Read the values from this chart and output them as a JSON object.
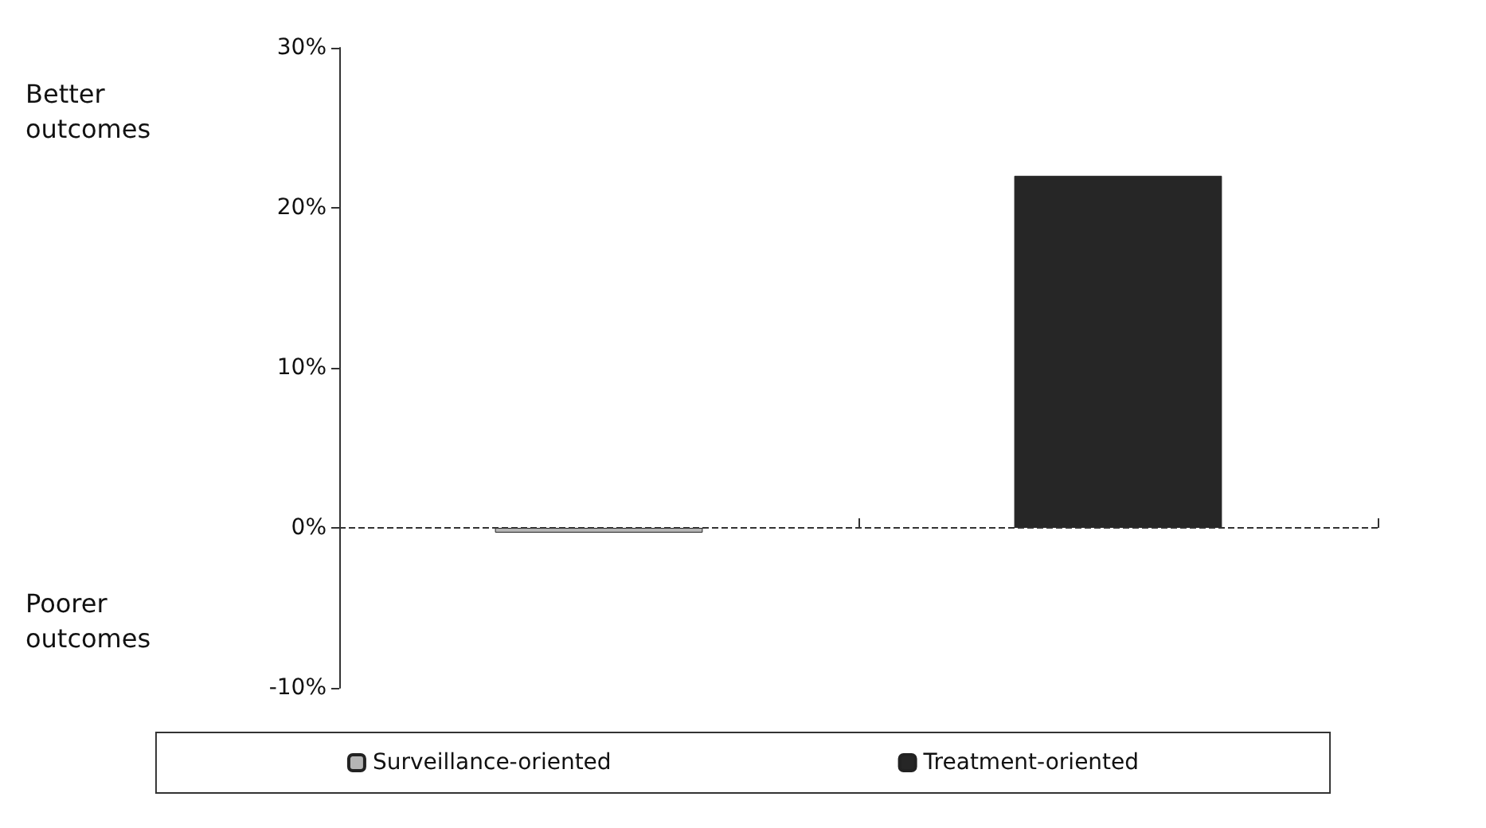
{
  "chart_data": {
    "type": "bar",
    "categories": [
      null,
      null
    ],
    "series": [
      {
        "name": "Surveillance-oriented",
        "color": "#b5b5b5",
        "values": [
          -0.3,
          null
        ]
      },
      {
        "name": "Treatment-oriented",
        "color": "#262626",
        "values": [
          null,
          22
        ]
      }
    ],
    "ylim": [
      -10,
      30
    ],
    "yticks": [
      {
        "value": -10,
        "label": "-10%"
      },
      {
        "value": 0,
        "label": "0%"
      },
      {
        "value": 10,
        "label": "10%"
      },
      {
        "value": 20,
        "label": "20%"
      },
      {
        "value": 30,
        "label": "30%"
      }
    ],
    "ref_lines": [
      {
        "axis": "y",
        "value": 0,
        "line_style": "dashed",
        "color": "#333333"
      }
    ],
    "annotations": [
      "Better outcomes",
      "Poorer outcomes"
    ],
    "grid": false,
    "legend": "bottom"
  }
}
